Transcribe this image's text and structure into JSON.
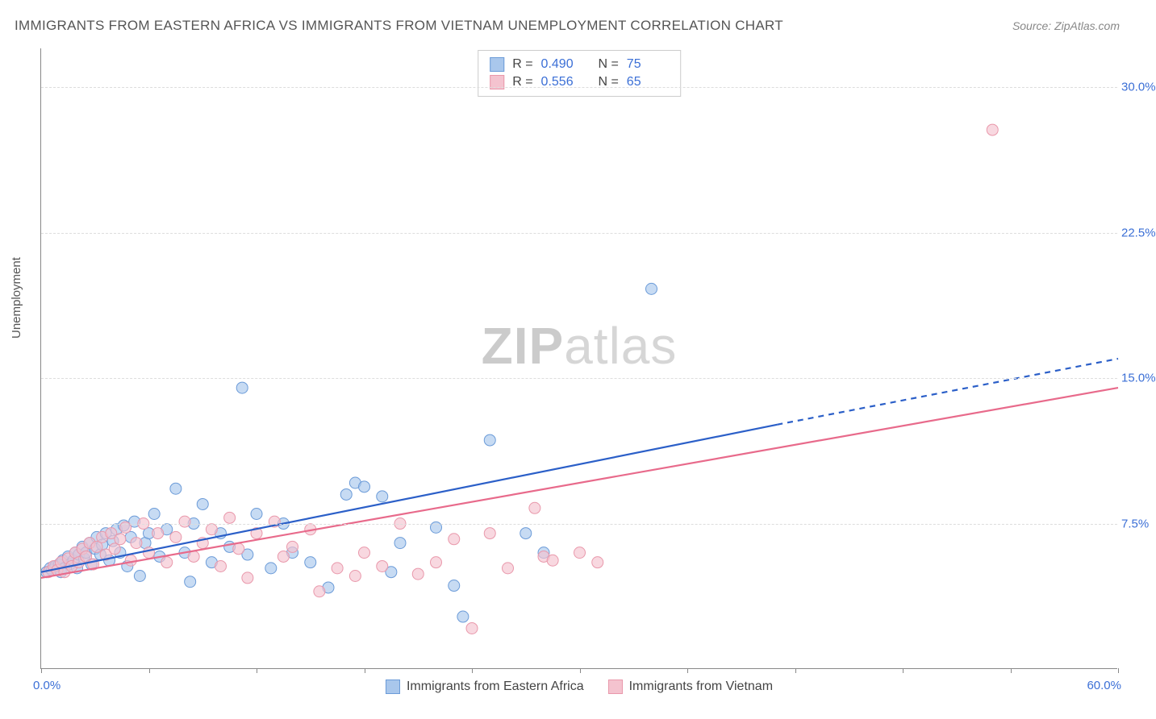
{
  "title": "IMMIGRANTS FROM EASTERN AFRICA VS IMMIGRANTS FROM VIETNAM UNEMPLOYMENT CORRELATION CHART",
  "source": "Source: ZipAtlas.com",
  "watermark_zip": "ZIP",
  "watermark_atlas": "atlas",
  "ylabel": "Unemployment",
  "chart": {
    "type": "scatter",
    "xlim": [
      0,
      60
    ],
    "ylim": [
      0,
      32
    ],
    "x_min_label": "0.0%",
    "x_max_label": "60.0%",
    "y_ticks": [
      7.5,
      15.0,
      22.5,
      30.0
    ],
    "y_tick_labels": [
      "7.5%",
      "15.0%",
      "22.5%",
      "30.0%"
    ],
    "x_ticks": [
      0,
      6,
      12,
      18,
      24,
      30,
      36,
      42,
      48,
      54,
      60
    ],
    "grid_color": "#dddddd",
    "axis_color": "#888888",
    "background_color": "#ffffff",
    "marker_radius": 7,
    "line_width": 2.2,
    "series": [
      {
        "name": "Immigrants from Eastern Africa",
        "fill_color": "#a9c7ec",
        "stroke_color": "#6b9bd8",
        "line_color": "#2b5fc8",
        "r_value": "0.490",
        "n_value": "75",
        "regression": {
          "x1": 0,
          "y1": 5.0,
          "x2": 41,
          "y2": 12.6,
          "dash_x2": 60,
          "dash_y2": 16.0
        },
        "points": [
          [
            0.3,
            5.0
          ],
          [
            0.5,
            5.2
          ],
          [
            0.6,
            5.1
          ],
          [
            0.8,
            5.3
          ],
          [
            1.0,
            5.4
          ],
          [
            1.1,
            5.0
          ],
          [
            1.2,
            5.6
          ],
          [
            1.3,
            5.2
          ],
          [
            1.5,
            5.8
          ],
          [
            1.6,
            5.4
          ],
          [
            1.8,
            5.6
          ],
          [
            1.9,
            6.0
          ],
          [
            2.0,
            5.2
          ],
          [
            2.1,
            5.9
          ],
          [
            2.3,
            6.3
          ],
          [
            2.4,
            5.7
          ],
          [
            2.5,
            6.0
          ],
          [
            2.7,
            6.5
          ],
          [
            2.8,
            5.4
          ],
          [
            3.0,
            6.2
          ],
          [
            3.1,
            6.8
          ],
          [
            3.3,
            5.9
          ],
          [
            3.4,
            6.4
          ],
          [
            3.6,
            7.0
          ],
          [
            3.8,
            5.6
          ],
          [
            4.0,
            6.6
          ],
          [
            4.2,
            7.2
          ],
          [
            4.4,
            6.0
          ],
          [
            4.6,
            7.4
          ],
          [
            4.8,
            5.3
          ],
          [
            5.0,
            6.8
          ],
          [
            5.2,
            7.6
          ],
          [
            5.5,
            4.8
          ],
          [
            5.8,
            6.5
          ],
          [
            6.0,
            7.0
          ],
          [
            6.3,
            8.0
          ],
          [
            6.6,
            5.8
          ],
          [
            7.0,
            7.2
          ],
          [
            7.5,
            9.3
          ],
          [
            8.0,
            6.0
          ],
          [
            8.3,
            4.5
          ],
          [
            8.5,
            7.5
          ],
          [
            9.0,
            8.5
          ],
          [
            9.5,
            5.5
          ],
          [
            10.0,
            7.0
          ],
          [
            10.5,
            6.3
          ],
          [
            11.2,
            14.5
          ],
          [
            11.5,
            5.9
          ],
          [
            12.0,
            8.0
          ],
          [
            12.8,
            5.2
          ],
          [
            13.5,
            7.5
          ],
          [
            14.0,
            6.0
          ],
          [
            15.0,
            5.5
          ],
          [
            16.0,
            4.2
          ],
          [
            17.0,
            9.0
          ],
          [
            17.5,
            9.6
          ],
          [
            18.0,
            9.4
          ],
          [
            19.0,
            8.9
          ],
          [
            19.5,
            5.0
          ],
          [
            20.0,
            6.5
          ],
          [
            22.0,
            7.3
          ],
          [
            23.0,
            4.3
          ],
          [
            23.5,
            2.7
          ],
          [
            25.0,
            11.8
          ],
          [
            27.0,
            7.0
          ],
          [
            28.0,
            6.0
          ],
          [
            34.0,
            19.6
          ]
        ]
      },
      {
        "name": "Immigrants from Vietnam",
        "fill_color": "#f4c3cf",
        "stroke_color": "#e998ab",
        "line_color": "#e86a8b",
        "r_value": "0.556",
        "n_value": "65",
        "regression": {
          "x1": 0,
          "y1": 4.7,
          "x2": 60,
          "y2": 14.5
        },
        "points": [
          [
            0.4,
            5.0
          ],
          [
            0.7,
            5.3
          ],
          [
            0.9,
            5.1
          ],
          [
            1.1,
            5.5
          ],
          [
            1.3,
            5.0
          ],
          [
            1.5,
            5.7
          ],
          [
            1.7,
            5.3
          ],
          [
            1.9,
            6.0
          ],
          [
            2.1,
            5.5
          ],
          [
            2.3,
            6.2
          ],
          [
            2.5,
            5.8
          ],
          [
            2.7,
            6.5
          ],
          [
            2.9,
            5.4
          ],
          [
            3.1,
            6.3
          ],
          [
            3.4,
            6.8
          ],
          [
            3.6,
            5.9
          ],
          [
            3.9,
            7.0
          ],
          [
            4.1,
            6.2
          ],
          [
            4.4,
            6.7
          ],
          [
            4.7,
            7.3
          ],
          [
            5.0,
            5.6
          ],
          [
            5.3,
            6.5
          ],
          [
            5.7,
            7.5
          ],
          [
            6.0,
            6.0
          ],
          [
            6.5,
            7.0
          ],
          [
            7.0,
            5.5
          ],
          [
            7.5,
            6.8
          ],
          [
            8.0,
            7.6
          ],
          [
            8.5,
            5.8
          ],
          [
            9.0,
            6.5
          ],
          [
            9.5,
            7.2
          ],
          [
            10.0,
            5.3
          ],
          [
            10.5,
            7.8
          ],
          [
            11.0,
            6.2
          ],
          [
            11.5,
            4.7
          ],
          [
            12.0,
            7.0
          ],
          [
            13.0,
            7.6
          ],
          [
            13.5,
            5.8
          ],
          [
            14.0,
            6.3
          ],
          [
            15.0,
            7.2
          ],
          [
            15.5,
            4.0
          ],
          [
            16.5,
            5.2
          ],
          [
            17.5,
            4.8
          ],
          [
            18.0,
            6.0
          ],
          [
            19.0,
            5.3
          ],
          [
            20.0,
            7.5
          ],
          [
            21.0,
            4.9
          ],
          [
            22.0,
            5.5
          ],
          [
            23.0,
            6.7
          ],
          [
            24.0,
            2.1
          ],
          [
            25.0,
            7.0
          ],
          [
            26.0,
            5.2
          ],
          [
            27.5,
            8.3
          ],
          [
            28.0,
            5.8
          ],
          [
            28.5,
            5.6
          ],
          [
            30.0,
            6.0
          ],
          [
            31.0,
            5.5
          ],
          [
            53.0,
            27.8
          ]
        ]
      }
    ]
  }
}
